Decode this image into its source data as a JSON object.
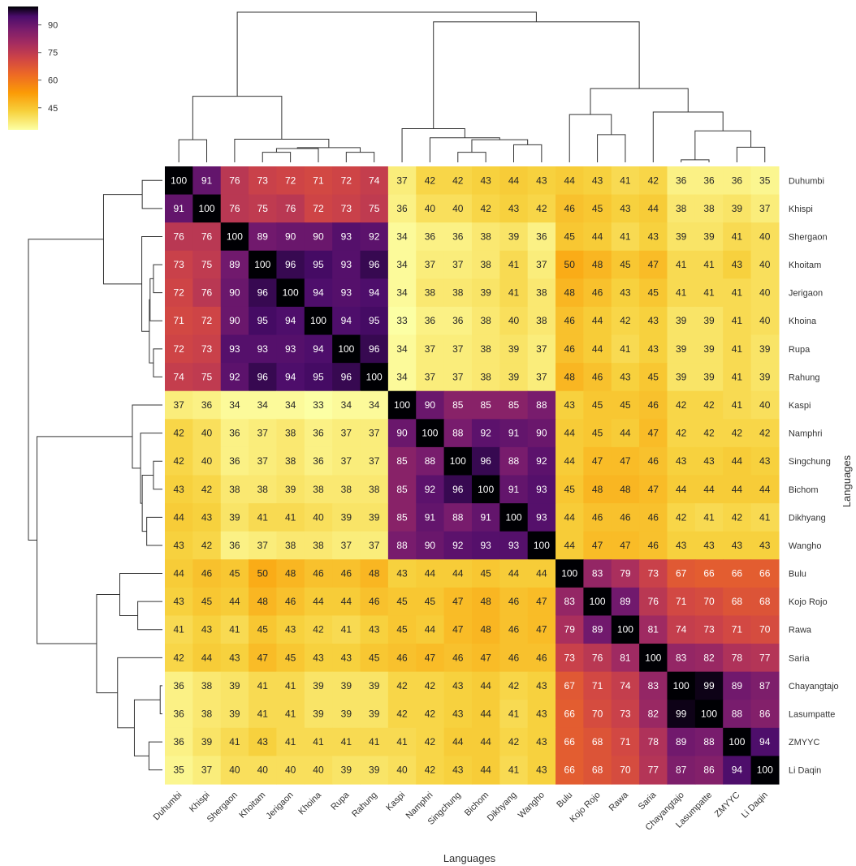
{
  "chart_data": {
    "type": "heatmap",
    "xlabel": "Languages",
    "ylabel": "Languages",
    "colormap": "inferno_r",
    "colorbar": {
      "ticks": [
        90,
        75,
        60,
        45
      ],
      "min": 33,
      "max": 100
    },
    "labels": [
      "Duhumbi",
      "Khispi",
      "Shergaon",
      "Khoitam",
      "Jerigaon",
      "Khoina",
      "Rupa",
      "Rahung",
      "Kaspi",
      "Namphri",
      "Singchung",
      "Bichom",
      "Dikhyang",
      "Wangho",
      "Bulu",
      "Kojo Rojo",
      "Rawa",
      "Saria",
      "Chayangtajo",
      "Lasumpatte",
      "ZMYYC",
      "Li Daqin"
    ],
    "values": [
      [
        100,
        91,
        76,
        73,
        72,
        71,
        72,
        74,
        37,
        42,
        42,
        43,
        44,
        43,
        44,
        43,
        41,
        42,
        36,
        36,
        36,
        35
      ],
      [
        91,
        100,
        76,
        75,
        76,
        72,
        73,
        75,
        36,
        40,
        40,
        42,
        43,
        42,
        46,
        45,
        43,
        44,
        38,
        38,
        39,
        37
      ],
      [
        76,
        76,
        100,
        89,
        90,
        90,
        93,
        92,
        34,
        36,
        36,
        38,
        39,
        36,
        45,
        44,
        41,
        43,
        39,
        39,
        41,
        40
      ],
      [
        73,
        75,
        89,
        100,
        96,
        95,
        93,
        96,
        34,
        37,
        37,
        38,
        41,
        37,
        50,
        48,
        45,
        47,
        41,
        41,
        43,
        40
      ],
      [
        72,
        76,
        90,
        96,
        100,
        94,
        93,
        94,
        34,
        38,
        38,
        39,
        41,
        38,
        48,
        46,
        43,
        45,
        41,
        41,
        41,
        40
      ],
      [
        71,
        72,
        90,
        95,
        94,
        100,
        94,
        95,
        33,
        36,
        36,
        38,
        40,
        38,
        46,
        44,
        42,
        43,
        39,
        39,
        41,
        40
      ],
      [
        72,
        73,
        93,
        93,
        93,
        94,
        100,
        96,
        34,
        37,
        37,
        38,
        39,
        37,
        46,
        44,
        41,
        43,
        39,
        39,
        41,
        39
      ],
      [
        74,
        75,
        92,
        96,
        94,
        95,
        96,
        100,
        34,
        37,
        37,
        38,
        39,
        37,
        48,
        46,
        43,
        45,
        39,
        39,
        41,
        39
      ],
      [
        37,
        36,
        34,
        34,
        34,
        33,
        34,
        34,
        100,
        90,
        85,
        85,
        85,
        88,
        43,
        45,
        45,
        46,
        42,
        42,
        41,
        40
      ],
      [
        42,
        40,
        36,
        37,
        38,
        36,
        37,
        37,
        90,
        100,
        88,
        92,
        91,
        90,
        44,
        45,
        44,
        47,
        42,
        42,
        42,
        42
      ],
      [
        42,
        40,
        36,
        37,
        38,
        36,
        37,
        37,
        85,
        88,
        100,
        96,
        88,
        92,
        44,
        47,
        47,
        46,
        43,
        43,
        44,
        43
      ],
      [
        43,
        42,
        38,
        38,
        39,
        38,
        38,
        38,
        85,
        92,
        96,
        100,
        91,
        93,
        45,
        48,
        48,
        47,
        44,
        44,
        44,
        44
      ],
      [
        44,
        43,
        39,
        41,
        41,
        40,
        39,
        39,
        85,
        91,
        88,
        91,
        100,
        93,
        44,
        46,
        46,
        46,
        42,
        41,
        42,
        41
      ],
      [
        43,
        42,
        36,
        37,
        38,
        38,
        37,
        37,
        88,
        90,
        92,
        93,
        93,
        100,
        44,
        47,
        47,
        46,
        43,
        43,
        43,
        43
      ],
      [
        44,
        46,
        45,
        50,
        48,
        46,
        46,
        48,
        43,
        44,
        44,
        45,
        44,
        44,
        100,
        83,
        79,
        73,
        67,
        66,
        66,
        66
      ],
      [
        43,
        45,
        44,
        48,
        46,
        44,
        44,
        46,
        45,
        45,
        47,
        48,
        46,
        47,
        83,
        100,
        89,
        76,
        71,
        70,
        68,
        68
      ],
      [
        41,
        43,
        41,
        45,
        43,
        42,
        41,
        43,
        45,
        44,
        47,
        48,
        46,
        47,
        79,
        89,
        100,
        81,
        74,
        73,
        71,
        70
      ],
      [
        42,
        44,
        43,
        47,
        45,
        43,
        43,
        45,
        46,
        47,
        46,
        47,
        46,
        46,
        73,
        76,
        81,
        100,
        83,
        82,
        78,
        77
      ],
      [
        36,
        38,
        39,
        41,
        41,
        39,
        39,
        39,
        42,
        42,
        43,
        44,
        42,
        43,
        67,
        71,
        74,
        83,
        100,
        99,
        89,
        87
      ],
      [
        36,
        38,
        39,
        41,
        41,
        39,
        39,
        39,
        42,
        42,
        43,
        44,
        41,
        43,
        66,
        70,
        73,
        82,
        99,
        100,
        88,
        86
      ],
      [
        36,
        39,
        41,
        43,
        41,
        41,
        41,
        41,
        41,
        42,
        44,
        44,
        42,
        43,
        66,
        68,
        71,
        78,
        89,
        88,
        100,
        94
      ],
      [
        35,
        37,
        40,
        40,
        40,
        40,
        39,
        39,
        40,
        42,
        43,
        44,
        41,
        43,
        66,
        68,
        70,
        77,
        87,
        86,
        94,
        100
      ]
    ]
  }
}
